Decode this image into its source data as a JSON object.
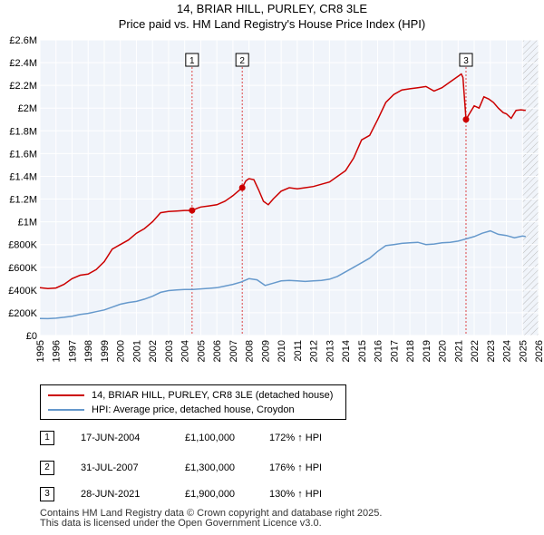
{
  "title": "14, BRIAR HILL, PURLEY, CR8 3LE",
  "subtitle": "Price paid vs. HM Land Registry's House Price Index (HPI)",
  "chart_data": {
    "type": "line",
    "title": "14, BRIAR HILL, PURLEY, CR8 3LE",
    "subtitle": "Price paid vs. HM Land Registry's House Price Index (HPI)",
    "xlim": [
      1995,
      2026
    ],
    "ylim": [
      0,
      2600000
    ],
    "x_ticks": [
      1995,
      1996,
      1997,
      1998,
      1999,
      2000,
      2001,
      2002,
      2003,
      2004,
      2005,
      2006,
      2007,
      2008,
      2009,
      2010,
      2011,
      2012,
      2013,
      2014,
      2015,
      2016,
      2017,
      2018,
      2019,
      2020,
      2021,
      2022,
      2023,
      2024,
      2025,
      2026
    ],
    "y_ticks": [
      {
        "value": 0,
        "label": "£0"
      },
      {
        "value": 200000,
        "label": "£200K"
      },
      {
        "value": 400000,
        "label": "£400K"
      },
      {
        "value": 600000,
        "label": "£600K"
      },
      {
        "value": 800000,
        "label": "£800K"
      },
      {
        "value": 1000000,
        "label": "£1M"
      },
      {
        "value": 1200000,
        "label": "£1.2M"
      },
      {
        "value": 1400000,
        "label": "£1.4M"
      },
      {
        "value": 1600000,
        "label": "£1.6M"
      },
      {
        "value": 1800000,
        "label": "£1.8M"
      },
      {
        "value": 2000000,
        "label": "£2M"
      },
      {
        "value": 2200000,
        "label": "£2.2M"
      },
      {
        "value": 2400000,
        "label": "£2.4M"
      },
      {
        "value": 2600000,
        "label": "£2.6M"
      }
    ],
    "grid": true,
    "forecast_start": 2025.0,
    "series": [
      {
        "name": "14, BRIAR HILL, PURLEY, CR8 3LE (detached house)",
        "color": "#cc0000",
        "x": [
          1995.0,
          1995.5,
          1996.0,
          1996.5,
          1997.0,
          1997.5,
          1998.0,
          1998.5,
          1999.0,
          1999.5,
          2000.0,
          2000.5,
          2001.0,
          2001.5,
          2002.0,
          2002.5,
          2003.0,
          2003.5,
          2004.0,
          2004.46,
          2004.8,
          2005.0,
          2005.5,
          2006.0,
          2006.5,
          2007.0,
          2007.58,
          2007.8,
          2008.0,
          2008.3,
          2008.6,
          2008.9,
          2009.2,
          2009.5,
          2010.0,
          2010.5,
          2011.0,
          2011.5,
          2012.0,
          2012.5,
          2013.0,
          2013.5,
          2014.0,
          2014.5,
          2015.0,
          2015.5,
          2016.0,
          2016.5,
          2017.0,
          2017.5,
          2018.0,
          2018.5,
          2019.0,
          2019.5,
          2020.0,
          2020.5,
          2021.0,
          2021.2,
          2021.3,
          2021.49,
          2021.7,
          2022.0,
          2022.3,
          2022.6,
          2022.9,
          2023.2,
          2023.5,
          2023.8,
          2024.0,
          2024.3,
          2024.6,
          2024.9,
          2025.2
        ],
        "y": [
          420000,
          412000,
          418000,
          450000,
          500000,
          530000,
          540000,
          580000,
          650000,
          760000,
          800000,
          840000,
          900000,
          940000,
          1000000,
          1080000,
          1090000,
          1095000,
          1100000,
          1100000,
          1120000,
          1130000,
          1140000,
          1150000,
          1180000,
          1230000,
          1300000,
          1360000,
          1380000,
          1370000,
          1280000,
          1180000,
          1150000,
          1200000,
          1270000,
          1300000,
          1290000,
          1300000,
          1310000,
          1330000,
          1350000,
          1400000,
          1450000,
          1560000,
          1720000,
          1760000,
          1900000,
          2050000,
          2120000,
          2160000,
          2170000,
          2180000,
          2190000,
          2150000,
          2180000,
          2230000,
          2280000,
          2300000,
          2270000,
          1900000,
          1950000,
          2020000,
          2000000,
          2100000,
          2080000,
          2050000,
          2000000,
          1960000,
          1950000,
          1910000,
          1980000,
          1985000,
          1980000
        ]
      },
      {
        "name": "HPI: Average price, detached house, Croydon",
        "color": "#6699cc",
        "x": [
          1995.0,
          1995.5,
          1996.0,
          1996.5,
          1997.0,
          1997.5,
          1998.0,
          1998.5,
          1999.0,
          1999.5,
          2000.0,
          2000.5,
          2001.0,
          2001.5,
          2002.0,
          2002.5,
          2003.0,
          2003.5,
          2004.0,
          2004.5,
          2005.0,
          2005.5,
          2006.0,
          2006.5,
          2007.0,
          2007.5,
          2008.0,
          2008.5,
          2009.0,
          2009.5,
          2010.0,
          2010.5,
          2011.0,
          2011.5,
          2012.0,
          2012.5,
          2013.0,
          2013.5,
          2014.0,
          2014.5,
          2015.0,
          2015.5,
          2016.0,
          2016.5,
          2017.0,
          2017.5,
          2018.0,
          2018.5,
          2019.0,
          2019.5,
          2020.0,
          2020.5,
          2021.0,
          2021.5,
          2022.0,
          2022.5,
          2023.0,
          2023.5,
          2024.0,
          2024.5,
          2025.0,
          2025.2
        ],
        "y": [
          150000,
          148000,
          152000,
          160000,
          170000,
          185000,
          195000,
          210000,
          225000,
          250000,
          275000,
          290000,
          300000,
          320000,
          345000,
          380000,
          395000,
          400000,
          405000,
          405000,
          410000,
          415000,
          420000,
          435000,
          450000,
          470000,
          500000,
          490000,
          440000,
          460000,
          480000,
          485000,
          480000,
          475000,
          480000,
          485000,
          495000,
          520000,
          560000,
          600000,
          640000,
          680000,
          740000,
          790000,
          800000,
          810000,
          815000,
          820000,
          800000,
          805000,
          815000,
          820000,
          830000,
          850000,
          870000,
          900000,
          920000,
          890000,
          880000,
          860000,
          875000,
          870000
        ]
      }
    ],
    "markers": [
      {
        "label": "1",
        "x": 2004.46,
        "price": 1100000,
        "date": "17-JUN-2004",
        "price_label": "£1,100,000",
        "hpi_label": "172% ↑ HPI"
      },
      {
        "label": "2",
        "x": 2007.58,
        "price": 1300000,
        "date": "31-JUL-2007",
        "price_label": "£1,300,000",
        "hpi_label": "176% ↑ HPI"
      },
      {
        "label": "3",
        "x": 2021.49,
        "price": 1900000,
        "date": "28-JUN-2021",
        "price_label": "£1,900,000",
        "hpi_label": "130% ↑ HPI"
      }
    ]
  },
  "legend": {
    "items": [
      {
        "label": "14, BRIAR HILL, PURLEY, CR8 3LE (detached house)",
        "color": "#cc0000"
      },
      {
        "label": "HPI: Average price, detached house, Croydon",
        "color": "#6699cc"
      }
    ]
  },
  "sales": [
    {
      "num": "1",
      "date": "17-JUN-2004",
      "price": "£1,100,000",
      "hpi": "172% ↑ HPI"
    },
    {
      "num": "2",
      "date": "31-JUL-2007",
      "price": "£1,300,000",
      "hpi": "176% ↑ HPI"
    },
    {
      "num": "3",
      "date": "28-JUN-2021",
      "price": "£1,900,000",
      "hpi": "130% ↑ HPI"
    }
  ],
  "footer": {
    "line1": "Contains HM Land Registry data © Crown copyright and database right 2025.",
    "line2": "This data is licensed under the Open Government Licence v3.0."
  }
}
